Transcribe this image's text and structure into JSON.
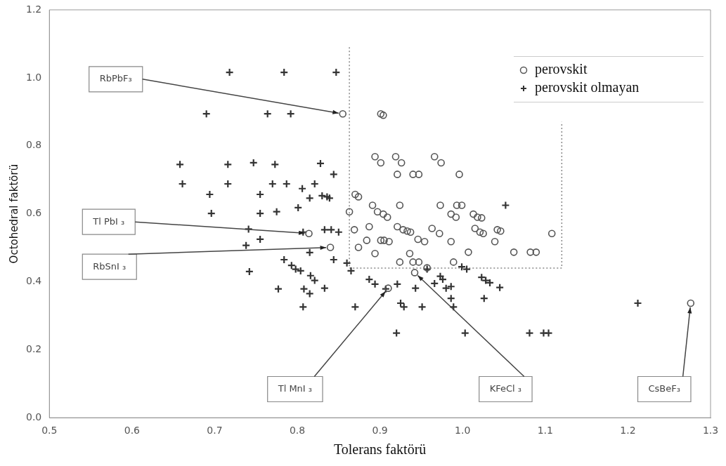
{
  "chart_data": {
    "type": "scatter",
    "xlabel": "Tolerans faktörü",
    "ylabel": "Octohedral faktörü",
    "xlim": [
      0.5,
      1.3
    ],
    "xticks": [
      {
        "value": 0.5,
        "label": "0.5"
      },
      {
        "value": 0.6,
        "label": "0.6"
      },
      {
        "value": 0.7,
        "label": "0.7"
      },
      {
        "value": 0.8,
        "label": "0.8"
      },
      {
        "value": 0.9,
        "label": "0.9"
      },
      {
        "value": 1.0,
        "label": "1.0"
      },
      {
        "value": 1.1,
        "label": "1.1"
      },
      {
        "value": 1.2,
        "label": "1.2"
      },
      {
        "value": 1.3,
        "label": "1.3"
      }
    ],
    "ylim": [
      0,
      1.2
    ],
    "yticks": [
      {
        "value": 0,
        "label": "0.0"
      },
      {
        "value": 0.2,
        "label": "0.2"
      },
      {
        "value": 0.4,
        "label": "0.4"
      },
      {
        "value": 0.6,
        "label": "0.6"
      },
      {
        "value": 0.8,
        "label": "0.8"
      },
      {
        "value": 1.0,
        "label": "1.0"
      },
      {
        "value": 1.2,
        "label": "1.2"
      }
    ],
    "grid": false,
    "legend": "top right",
    "series": [
      {
        "name": "perovskit",
        "color": "#555555",
        "marker": "circle",
        "x": [
          0.855,
          0.901,
          0.904,
          0.894,
          0.901,
          0.919,
          0.926,
          0.921,
          0.94,
          0.947,
          0.966,
          0.974,
          0.996,
          0.87,
          0.874,
          0.863,
          0.891,
          0.897,
          0.904,
          0.909,
          0.924,
          0.973,
          0.993,
          0.999,
          0.986,
          0.992,
          1.013,
          1.018,
          1.023,
          1.108,
          0.869,
          0.887,
          0.921,
          0.928,
          0.933,
          0.937,
          0.963,
          0.972,
          1.015,
          1.021,
          1.025,
          1.042,
          1.046,
          0.874,
          0.884,
          0.901,
          0.905,
          0.911,
          0.894,
          0.936,
          0.946,
          0.954,
          0.986,
          1.007,
          1.039,
          1.062,
          1.082,
          1.089,
          0.924,
          0.94,
          0.947,
          0.989,
          0.957,
          0.942,
          0.814,
          0.84,
          0.91,
          1.276
        ],
        "values": [
          0.894,
          0.894,
          0.89,
          0.768,
          0.75,
          0.768,
          0.75,
          0.716,
          0.716,
          0.716,
          0.768,
          0.75,
          0.716,
          0.657,
          0.65,
          0.606,
          0.625,
          0.606,
          0.599,
          0.59,
          0.625,
          0.625,
          0.625,
          0.625,
          0.599,
          0.59,
          0.599,
          0.59,
          0.588,
          0.542,
          0.553,
          0.562,
          0.562,
          0.553,
          0.549,
          0.546,
          0.557,
          0.542,
          0.557,
          0.546,
          0.542,
          0.553,
          0.549,
          0.501,
          0.522,
          0.522,
          0.522,
          0.518,
          0.483,
          0.483,
          0.525,
          0.518,
          0.518,
          0.487,
          0.518,
          0.487,
          0.487,
          0.487,
          0.458,
          0.458,
          0.458,
          0.458,
          0.441,
          0.427,
          0.542,
          0.501,
          0.381,
          0.337
        ]
      },
      {
        "name": "perovskit olmayan",
        "color": "#333333",
        "marker": "cross",
        "x": [
          0.718,
          0.784,
          0.847,
          0.69,
          0.764,
          0.792,
          0.658,
          0.716,
          0.747,
          0.773,
          0.828,
          0.661,
          0.716,
          0.77,
          0.787,
          0.821,
          0.844,
          0.694,
          0.755,
          0.806,
          0.801,
          0.83,
          0.836,
          0.839,
          0.696,
          0.755,
          0.775,
          0.815,
          0.741,
          0.738,
          0.755,
          0.807,
          0.833,
          0.841,
          0.85,
          0.742,
          0.777,
          0.808,
          0.815,
          0.833,
          0.807,
          0.784,
          0.793,
          0.798,
          0.804,
          0.815,
          0.844,
          0.86,
          0.865,
          0.816,
          0.821,
          0.887,
          0.894,
          0.907,
          0.87,
          0.929,
          0.921,
          0.925,
          0.92,
          0.943,
          0.951,
          0.966,
          0.973,
          0.976,
          0.98,
          0.986,
          0.986,
          0.989,
          1.003,
          0.999,
          1.005,
          1.023,
          1.028,
          1.033,
          1.045,
          1.026,
          1.052,
          1.081,
          1.098,
          1.104,
          1.212,
          0.957
        ],
        "values": [
          1.016,
          1.016,
          1.016,
          0.894,
          0.894,
          0.894,
          0.745,
          0.745,
          0.75,
          0.745,
          0.748,
          0.688,
          0.688,
          0.688,
          0.688,
          0.688,
          0.716,
          0.657,
          0.657,
          0.674,
          0.618,
          0.653,
          0.65,
          0.646,
          0.601,
          0.601,
          0.606,
          0.646,
          0.555,
          0.507,
          0.525,
          0.546,
          0.553,
          0.553,
          0.546,
          0.43,
          0.379,
          0.379,
          0.365,
          0.381,
          0.326,
          0.465,
          0.448,
          0.437,
          0.432,
          0.486,
          0.465,
          0.455,
          0.432,
          0.418,
          0.404,
          0.407,
          0.393,
          0.379,
          0.326,
          0.326,
          0.393,
          0.337,
          0.249,
          0.381,
          0.326,
          0.395,
          0.416,
          0.407,
          0.381,
          0.386,
          0.351,
          0.326,
          0.249,
          0.444,
          0.437,
          0.413,
          0.404,
          0.397,
          0.383,
          0.351,
          0.625,
          0.249,
          0.249,
          0.249,
          0.337,
          0.437
        ]
      },
      {
        "type": "line",
        "color": "#888888",
        "marker": "none",
        "line_style": "dotted",
        "x": [
          0.863,
          0.863,
          1.12,
          1.12
        ],
        "values": [
          1.09,
          0.44,
          0.44,
          0.87
        ]
      }
    ],
    "annotations": [
      {
        "text": "RbPbF₃",
        "x": 0.855,
        "y": 0.894
      },
      {
        "text": "Tl PbI ₃",
        "x": 0.814,
        "y": 0.542
      },
      {
        "text": "RbSnI ₃",
        "x": 0.84,
        "y": 0.501
      },
      {
        "text": "Tl MnI ₃",
        "x": 0.91,
        "y": 0.381
      },
      {
        "text": "KFeCl ₃",
        "x": 0.942,
        "y": 0.427
      },
      {
        "text": "CsBeF₃",
        "x": 1.276,
        "y": 0.337
      }
    ]
  }
}
